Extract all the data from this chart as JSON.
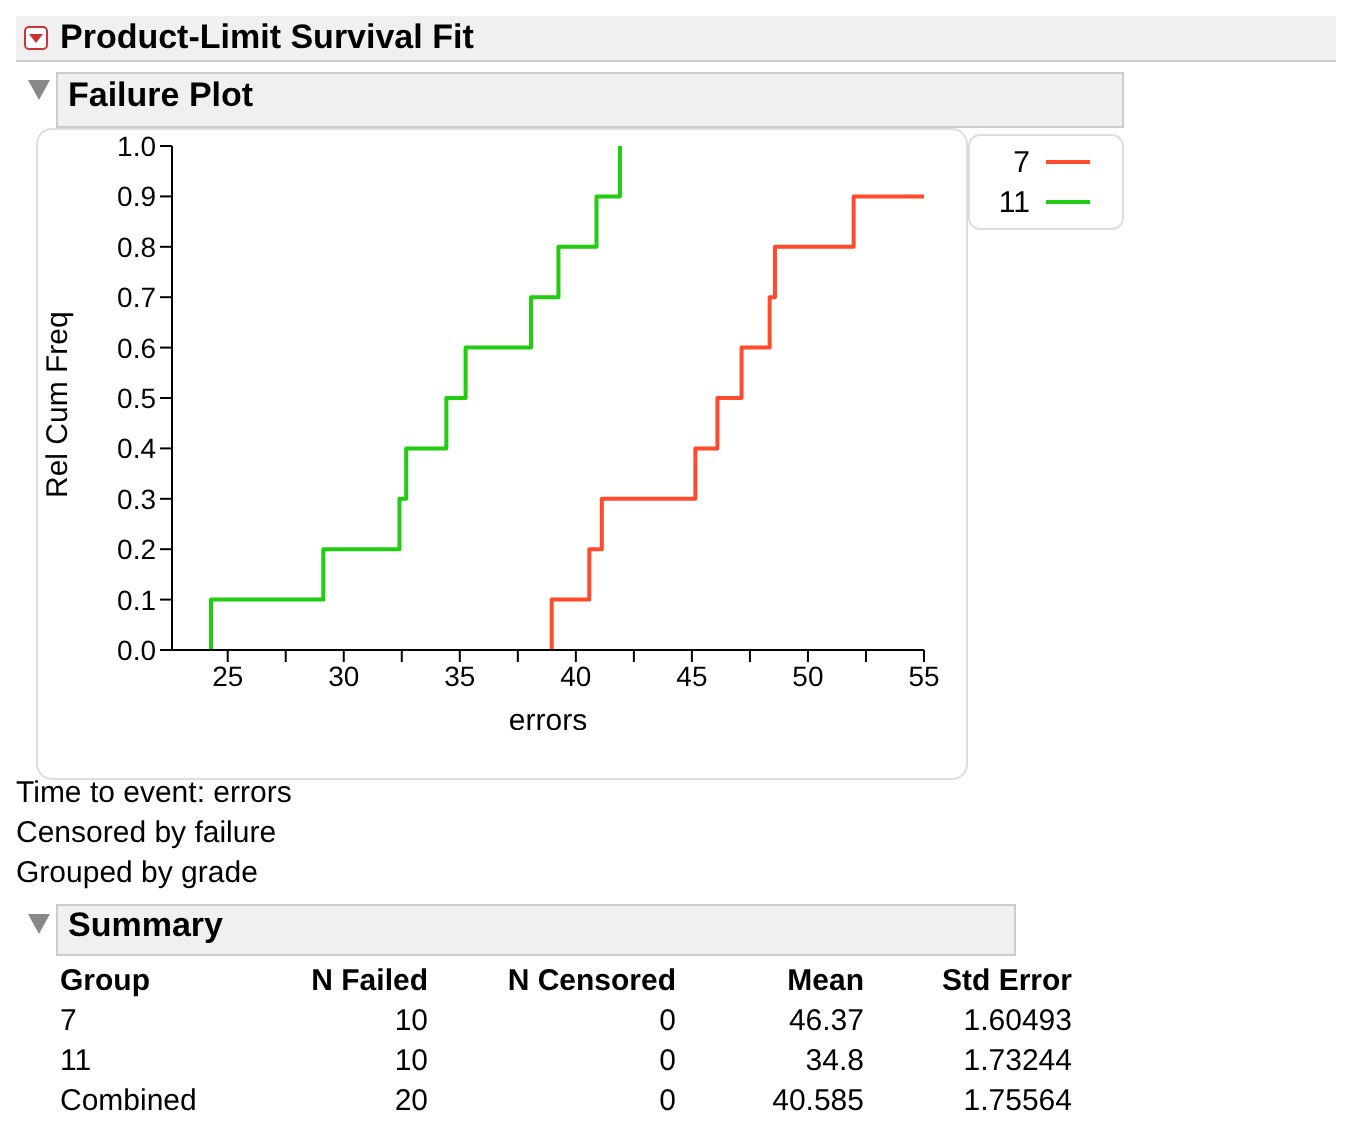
{
  "chart_data": {
    "type": "step",
    "title": "Product-Limit Survival Fit",
    "subtitle": "Failure Plot",
    "xlabel": "errors",
    "ylabel": "Rel Cum Freq",
    "series": [
      {
        "name": "7",
        "color": "#ff4b2b",
        "x": [
          38.96,
          38.96,
          40.58,
          41.12,
          45.15,
          46.1,
          47.14,
          48.35,
          48.58,
          51.97,
          55
        ],
        "values": [
          0,
          0.1,
          0.2,
          0.3,
          0.4,
          0.5,
          0.6,
          0.7,
          0.8,
          0.9,
          0.9
        ]
      },
      {
        "name": "11",
        "color": "#22cc11",
        "x": [
          24.28,
          24.28,
          29.12,
          32.4,
          32.69,
          34.42,
          35.25,
          38.07,
          39.25,
          40.89,
          41.9
        ],
        "values": [
          0,
          0.1,
          0.2,
          0.3,
          0.4,
          0.5,
          0.6,
          0.7,
          0.8,
          0.9,
          1.0
        ]
      }
    ],
    "xlim": [
      22.6,
      55
    ],
    "xticks": [
      25,
      {
        "value": 27.5,
        "label": null
      },
      30,
      {
        "value": 32.5,
        "label": null
      },
      35,
      {
        "value": 37.5,
        "label": null
      },
      40,
      {
        "value": 42.5,
        "label": null
      },
      45,
      {
        "value": 47.5,
        "label": null
      },
      50,
      {
        "value": 52.5,
        "label": null
      },
      55
    ],
    "ylim": [
      0,
      1
    ],
    "yticks": [
      {
        "value": 0,
        "label": "0.0"
      },
      0.1,
      0.2,
      0.3,
      0.4,
      0.5,
      0.6,
      0.7,
      0.8,
      0.9,
      {
        "value": 1,
        "label": "1.0"
      }
    ],
    "grid": false,
    "legend": "top right",
    "marker": "none",
    "line_style": "solid",
    "annotations": [
      "Time to event: errors",
      "Censored by failure",
      "Grouped by grade",
      "Summary",
      "Group\tN Failed\tN Censored\tMean\tStd Error",
      "7\t10\t0\t46.37\t1.60493",
      "11\t10\t0\t34.8\t1.73244",
      "Combined\t20\t0\t40.585\t1.75564"
    ]
  }
}
